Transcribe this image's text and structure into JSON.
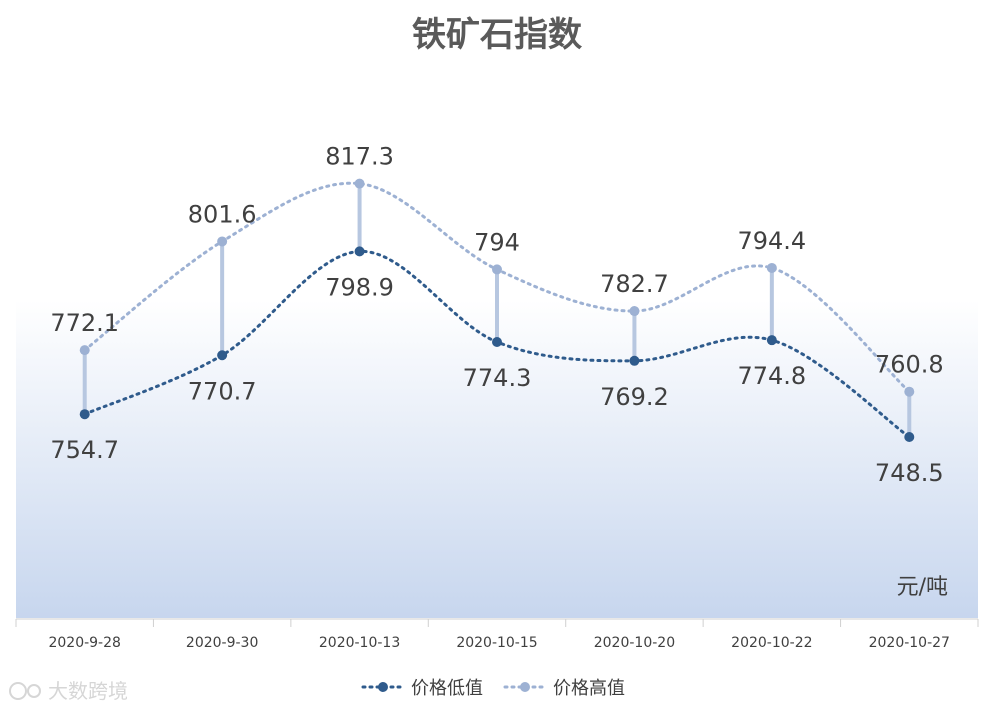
{
  "chart_data": {
    "type": "line",
    "title": "铁矿石指数",
    "categories": [
      "2020-9-28",
      "2020-9-30",
      "2020-10-13",
      "2020-10-15",
      "2020-10-20",
      "2020-10-22",
      "2020-10-27"
    ],
    "series": [
      {
        "name": "价格低值",
        "values": [
          754.7,
          770.7,
          798.9,
          774.3,
          769.2,
          774.8,
          748.5
        ],
        "color": "#2f5b8c"
      },
      {
        "name": "价格高值",
        "values": [
          772.1,
          801.6,
          817.3,
          794,
          782.7,
          794.4,
          760.8
        ],
        "color": "#9db1d3"
      }
    ],
    "value_labels": {
      "low": [
        "754.7",
        "770.7",
        "798.9",
        "774.3",
        "769.2",
        "774.8",
        "748.5"
      ],
      "high": [
        "772.1",
        "801.6",
        "817.3",
        "794",
        "782.7",
        "794.4",
        "760.8"
      ]
    },
    "unit": "元/吨",
    "ylim": [
      720,
      840
    ],
    "grid": false,
    "legend_position": "bottom",
    "smooth": true,
    "high_low_lines": true,
    "colors": {
      "low": "#2f5b8c",
      "high": "#9db1d3",
      "connector": "#b7c7e0",
      "bg_bottom": "#c7d6ee"
    }
  },
  "watermark": "大数跨境"
}
